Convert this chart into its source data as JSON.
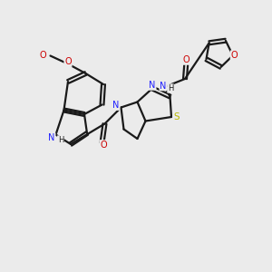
{
  "bg_color": "#ebebeb",
  "bond_color": "#1a1a1a",
  "N_color": "#2020ff",
  "O_color": "#cc0000",
  "S_color": "#b8b800",
  "line_width": 1.6,
  "figsize": [
    3.0,
    3.0
  ],
  "dpi": 100,
  "xlim": [
    0,
    10
  ],
  "ylim": [
    0,
    10
  ]
}
